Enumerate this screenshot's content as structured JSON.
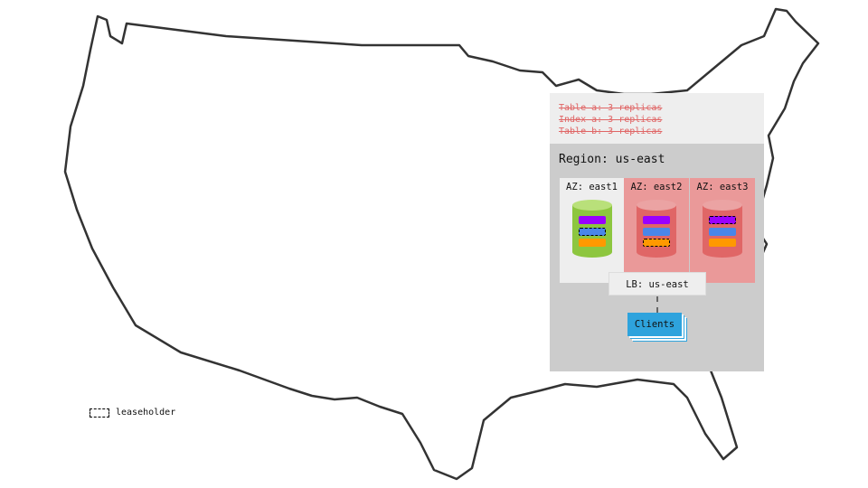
{
  "replicas": [
    "Table a: 3 replicas",
    "Index a: 3 replicas",
    "Table b: 3 replicas"
  ],
  "region": {
    "title": "Region: us-east"
  },
  "azs": [
    {
      "label": "AZ: east1",
      "status": "up",
      "bg": "#eeeeee",
      "cyl": "#8dc63f",
      "cyl_top": "#b9e07a",
      "leaseholder_bar": 1
    },
    {
      "label": "AZ: east2",
      "status": "down",
      "bg": "#ea9999",
      "cyl": "#e06666",
      "cyl_top": "#eba3a3",
      "leaseholder_bar": 2
    },
    {
      "label": "AZ: east3",
      "status": "down",
      "bg": "#ea9999",
      "cyl": "#e06666",
      "cyl_top": "#eba3a3",
      "leaseholder_bar": 0
    }
  ],
  "bar_colors": [
    "#9900ff",
    "#4a86e8",
    "#ff9900"
  ],
  "lb": {
    "label": "LB: us-east"
  },
  "clients": {
    "label": "Clients"
  },
  "legend": {
    "label": "leaseholder"
  }
}
